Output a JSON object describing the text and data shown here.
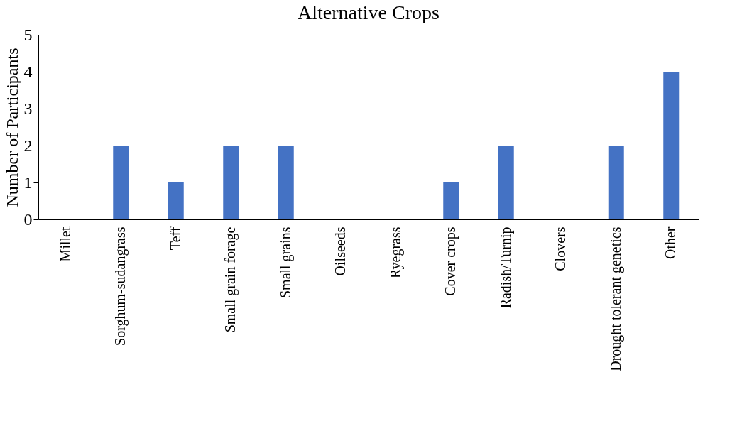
{
  "chart_data": {
    "type": "bar",
    "title": "Alternative Crops",
    "ylabel": "Number of Participants",
    "categories": [
      "Millet",
      "Sorghum-sudangrass",
      "Teff",
      "Small grain forage",
      "Small grains",
      "Oilseeds",
      "Ryegrass",
      "Cover crops",
      "Radish/Turnip",
      "Clovers",
      "Drought tolerant genetics",
      "Other"
    ],
    "values": [
      0,
      2,
      1,
      2,
      2,
      0,
      0,
      1,
      2,
      0,
      2,
      4
    ],
    "color": "#4472c4",
    "ylim": [
      0,
      5
    ],
    "yticks": [
      0,
      1,
      2,
      3,
      4,
      5
    ],
    "grid": false
  }
}
